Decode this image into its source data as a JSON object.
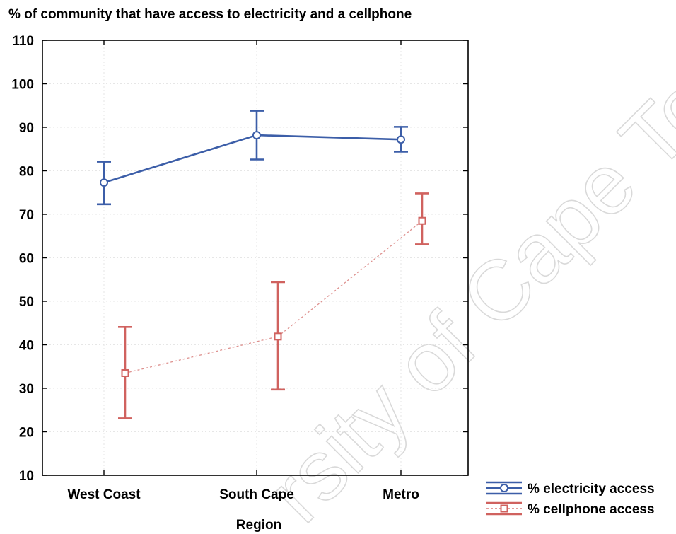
{
  "chart_data": {
    "type": "line",
    "title": "% of community that have access to electricity and a cellphone",
    "xlabel": "Region",
    "ylabel": "",
    "categories": [
      "West Coast",
      "South Cape",
      "Metro"
    ],
    "ylim": [
      10,
      110
    ],
    "yticks": [
      10,
      20,
      30,
      40,
      50,
      60,
      70,
      80,
      90,
      100,
      110
    ],
    "grid": true,
    "legend_position": "bottom-right",
    "error_bars": true,
    "series": [
      {
        "name": "% electricity access",
        "values": [
          77.3,
          88.2,
          87.2
        ],
        "lower": [
          72.3,
          82.6,
          84.4
        ],
        "upper": [
          82.1,
          93.8,
          90.1
        ],
        "color": "#3c5ea8",
        "marker": "circle",
        "line_style": "solid"
      },
      {
        "name": "% cellphone access",
        "values": [
          33.5,
          41.9,
          68.5
        ],
        "lower": [
          23.1,
          29.7,
          63.1
        ],
        "upper": [
          44.1,
          54.4,
          74.8
        ],
        "color": "#d0625f",
        "marker": "square",
        "line_style": "dotted"
      }
    ]
  },
  "watermark": {
    "text": "University of Cape Town",
    "visible_text": "rsity of Cape Town"
  }
}
